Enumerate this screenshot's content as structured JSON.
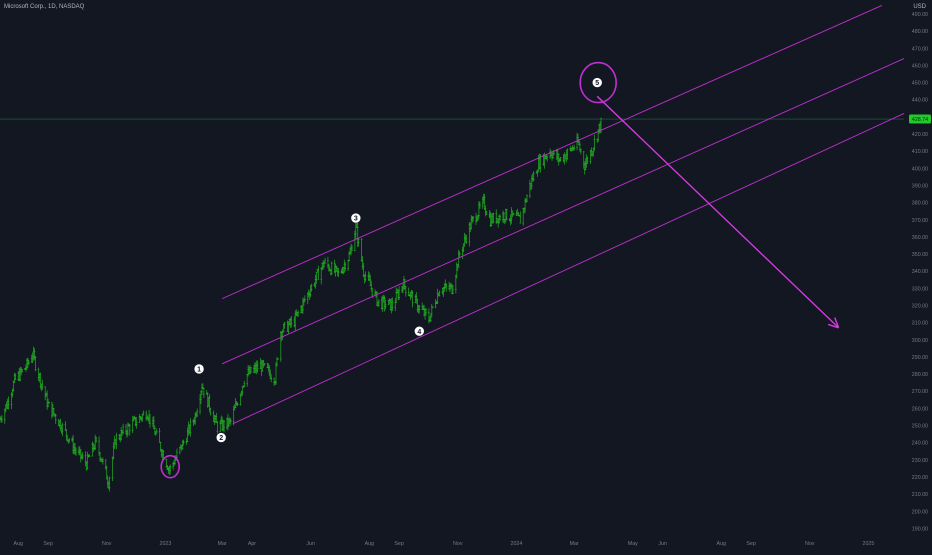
{
  "header": {
    "symbol_title": "Microsoft Corp., 1D, NASDAQ",
    "currency": "USD"
  },
  "colors": {
    "background": "#131722",
    "candle": "#22b022",
    "channel": "#c02fd0",
    "arrow": "#d23ae0",
    "axis_text": "#787b86",
    "price_line": "#1e6b45",
    "price_badge_bg": "#22c92b",
    "price_badge_text": "#0b2a0f",
    "wave_label_fill": "#ffffff",
    "wave_label_text": "#131722"
  },
  "chart_data": {
    "type": "candlestick",
    "title": "Microsoft Corp., 1D, NASDAQ",
    "y_axis": {
      "unit": "USD",
      "range": [
        185,
        497
      ],
      "ticks": [
        190,
        200,
        210,
        220,
        230,
        240,
        250,
        260,
        270,
        280,
        290,
        300,
        310,
        320,
        330,
        340,
        350,
        360,
        370,
        380,
        390,
        400,
        410,
        420,
        430,
        440,
        450,
        460,
        470,
        480,
        490
      ]
    },
    "x_axis": {
      "range": [
        "2022-07-13",
        "2025-02-07"
      ],
      "ticks": [
        {
          "label": "Aug",
          "date": "2022-08-01"
        },
        {
          "label": "Sep",
          "date": "2022-09-01"
        },
        {
          "label": "Nov",
          "date": "2022-11-01"
        },
        {
          "label": "2023",
          "date": "2023-01-01"
        },
        {
          "label": "Mar",
          "date": "2023-03-01"
        },
        {
          "label": "Apr",
          "date": "2023-04-01"
        },
        {
          "label": "Jun",
          "date": "2023-06-01"
        },
        {
          "label": "Aug",
          "date": "2023-08-01"
        },
        {
          "label": "Sep",
          "date": "2023-09-01"
        },
        {
          "label": "Nov",
          "date": "2023-11-01"
        },
        {
          "label": "2024",
          "date": "2024-01-01"
        },
        {
          "label": "Mar",
          "date": "2024-03-01"
        },
        {
          "label": "May",
          "date": "2024-05-01"
        },
        {
          "label": "Jun",
          "date": "2024-06-01"
        },
        {
          "label": "Aug",
          "date": "2024-08-01"
        },
        {
          "label": "Sep",
          "date": "2024-09-01"
        },
        {
          "label": "Nov",
          "date": "2024-11-01"
        },
        {
          "label": "2025",
          "date": "2025-01-01"
        }
      ]
    },
    "price_path": [
      {
        "date": "2022-07-13",
        "price": 254
      },
      {
        "date": "2022-07-20",
        "price": 262
      },
      {
        "date": "2022-07-28",
        "price": 276
      },
      {
        "date": "2022-08-10",
        "price": 285
      },
      {
        "date": "2022-08-16",
        "price": 292
      },
      {
        "date": "2022-08-22",
        "price": 280
      },
      {
        "date": "2022-09-01",
        "price": 262
      },
      {
        "date": "2022-09-15",
        "price": 250
      },
      {
        "date": "2022-09-30",
        "price": 235
      },
      {
        "date": "2022-10-11",
        "price": 228
      },
      {
        "date": "2022-10-20",
        "price": 240
      },
      {
        "date": "2022-10-26",
        "price": 232
      },
      {
        "date": "2022-11-03",
        "price": 217
      },
      {
        "date": "2022-11-10",
        "price": 242
      },
      {
        "date": "2022-11-30",
        "price": 252
      },
      {
        "date": "2022-12-13",
        "price": 258
      },
      {
        "date": "2022-12-28",
        "price": 236
      },
      {
        "date": "2023-01-05",
        "price": 224
      },
      {
        "date": "2023-01-20",
        "price": 240
      },
      {
        "date": "2023-02-01",
        "price": 256
      },
      {
        "date": "2023-02-08",
        "price": 274
      },
      {
        "date": "2023-02-24",
        "price": 249
      },
      {
        "date": "2023-03-10",
        "price": 252
      },
      {
        "date": "2023-03-25",
        "price": 279
      },
      {
        "date": "2023-04-10",
        "price": 285
      },
      {
        "date": "2023-04-25",
        "price": 278
      },
      {
        "date": "2023-05-01",
        "price": 305
      },
      {
        "date": "2023-05-15",
        "price": 311
      },
      {
        "date": "2023-06-01",
        "price": 330
      },
      {
        "date": "2023-06-15",
        "price": 345
      },
      {
        "date": "2023-06-30",
        "price": 338
      },
      {
        "date": "2023-07-12",
        "price": 350
      },
      {
        "date": "2023-07-18",
        "price": 366
      },
      {
        "date": "2023-07-26",
        "price": 340
      },
      {
        "date": "2023-08-10",
        "price": 322
      },
      {
        "date": "2023-08-25",
        "price": 320
      },
      {
        "date": "2023-09-05",
        "price": 333
      },
      {
        "date": "2023-09-20",
        "price": 320
      },
      {
        "date": "2023-10-02",
        "price": 312
      },
      {
        "date": "2023-10-13",
        "price": 330
      },
      {
        "date": "2023-10-26",
        "price": 330
      },
      {
        "date": "2023-11-03",
        "price": 350
      },
      {
        "date": "2023-11-15",
        "price": 368
      },
      {
        "date": "2023-11-28",
        "price": 380
      },
      {
        "date": "2023-12-05",
        "price": 370
      },
      {
        "date": "2023-12-20",
        "price": 373
      },
      {
        "date": "2024-01-05",
        "price": 370
      },
      {
        "date": "2024-01-15",
        "price": 390
      },
      {
        "date": "2024-01-24",
        "price": 403
      },
      {
        "date": "2024-02-05",
        "price": 410
      },
      {
        "date": "2024-02-15",
        "price": 405
      },
      {
        "date": "2024-02-25",
        "price": 410
      },
      {
        "date": "2024-03-05",
        "price": 415
      },
      {
        "date": "2024-03-12",
        "price": 402
      },
      {
        "date": "2024-03-20",
        "price": 412
      },
      {
        "date": "2024-03-28",
        "price": 425
      },
      {
        "date": "2024-04-01",
        "price": 429
      }
    ],
    "last_price": {
      "value": 428.74,
      "label": "428.74"
    },
    "channel_lines": [
      {
        "name": "upper",
        "start": {
          "date": "2023-03-01",
          "price": 324
        },
        "end": {
          "date": "2025-01-15",
          "price": 495
        }
      },
      {
        "name": "middle",
        "start": {
          "date": "2023-03-01",
          "price": 286
        },
        "end": {
          "date": "2025-02-07",
          "price": 464
        }
      },
      {
        "name": "lower",
        "start": {
          "date": "2023-03-12",
          "price": 251
        },
        "end": {
          "date": "2025-02-07",
          "price": 432
        }
      }
    ],
    "forecast_arrow": {
      "start": {
        "date": "2024-03-25",
        "price": 442
      },
      "end": {
        "date": "2024-12-01",
        "price": 307
      }
    },
    "wave_labels": [
      {
        "label": "1",
        "date": "2023-02-05",
        "price": 283
      },
      {
        "label": "2",
        "date": "2023-02-28",
        "price": 243
      },
      {
        "label": "3",
        "date": "2023-07-18",
        "price": 371
      },
      {
        "label": "4",
        "date": "2023-09-22",
        "price": 305
      },
      {
        "label": "5",
        "date": "2024-03-25",
        "price": 450
      }
    ],
    "circle_markers": [
      {
        "name": "wave-start-circle",
        "date": "2023-01-06",
        "price": 226
      },
      {
        "name": "wave-5-circle",
        "date": "2024-03-26",
        "price": 450
      }
    ],
    "grid": false,
    "legend": "none"
  }
}
